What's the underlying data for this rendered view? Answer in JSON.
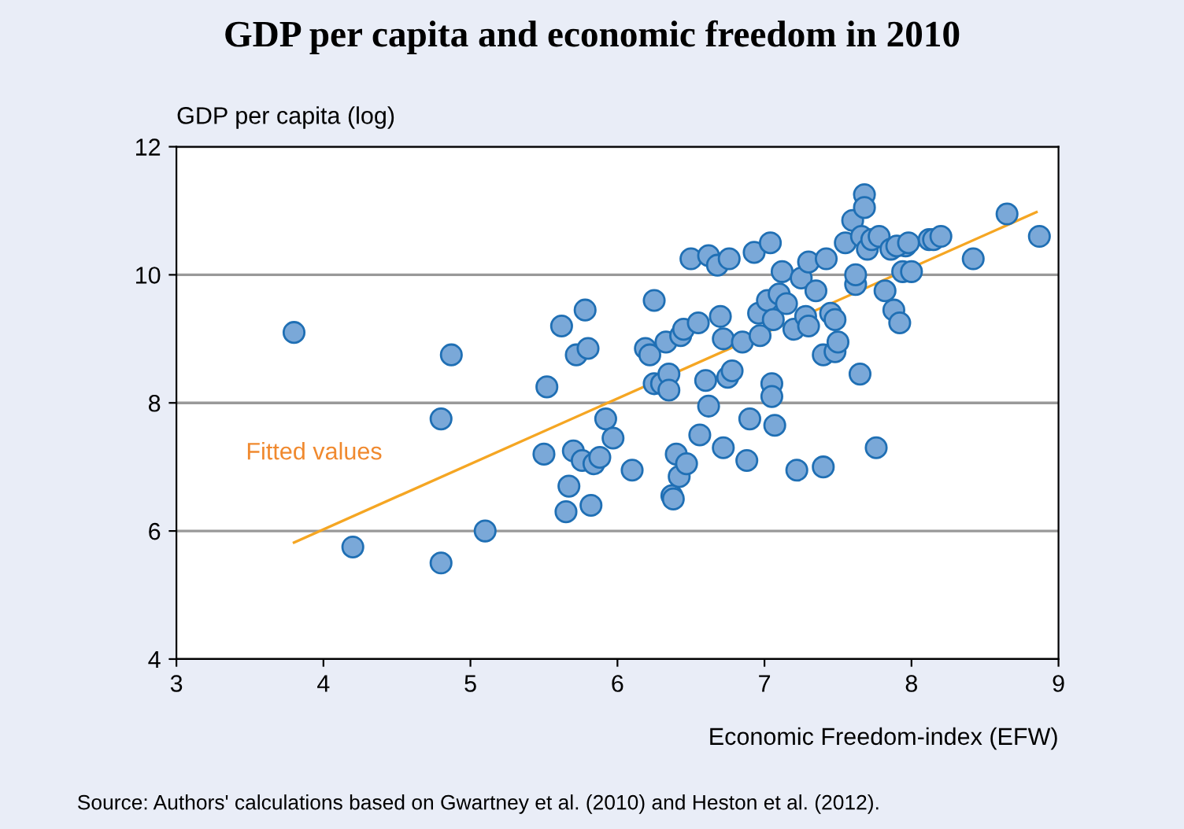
{
  "chart_data": {
    "type": "scatter",
    "title": "GDP per capita and economic freedom in 2010",
    "xlabel": "Economic Freedom-index (EFW)",
    "ylabel": "GDP per capita (log)",
    "annotations": [
      "Source: Authors' calculations based on Gwartney et al. (2010) and Heston et al. (2012)."
    ],
    "xlim": [
      3,
      9
    ],
    "ylim": [
      4,
      12
    ],
    "xticks": [
      3,
      4,
      5,
      6,
      7,
      8,
      9
    ],
    "yticks": [
      4,
      6,
      8,
      10,
      12
    ],
    "grid": "y",
    "marker": "circle",
    "series": [
      {
        "color": "#7aa8d8",
        "x": [
          3.8,
          4.2,
          4.8,
          4.8,
          4.87,
          5.1,
          5.52,
          5.5,
          5.62,
          5.65,
          5.67,
          5.7,
          5.72,
          5.78,
          5.76,
          5.8,
          5.82,
          5.84,
          5.88,
          5.92,
          5.97,
          6.1,
          6.19,
          6.22,
          6.25,
          6.25,
          6.3,
          6.33,
          6.35,
          6.35,
          6.37,
          6.38,
          6.4,
          6.42,
          6.43,
          6.45,
          6.47,
          6.5,
          6.55,
          6.56,
          6.6,
          6.62,
          6.62,
          6.68,
          6.7,
          6.72,
          6.72,
          6.75,
          6.78,
          6.76,
          6.85,
          6.9,
          6.88,
          6.93,
          6.96,
          6.97,
          7.02,
          7.04,
          7.05,
          7.05,
          7.06,
          7.07,
          7.1,
          7.12,
          7.15,
          7.2,
          7.22,
          7.25,
          7.28,
          7.3,
          7.3,
          7.35,
          7.4,
          7.4,
          7.42,
          7.45,
          7.48,
          7.48,
          7.5,
          7.55,
          7.6,
          7.62,
          7.65,
          7.62,
          7.66,
          7.68,
          7.68,
          7.7,
          7.73,
          7.76,
          7.78,
          7.82,
          7.86,
          7.88,
          7.92,
          7.94,
          7.96,
          8.0,
          8.12,
          8.15,
          8.2,
          8.42,
          8.65,
          8.87,
          7.9,
          7.98
        ],
        "values": [
          9.1,
          5.75,
          5.5,
          7.75,
          8.75,
          6.0,
          8.25,
          7.2,
          9.2,
          6.3,
          6.7,
          7.25,
          8.75,
          9.45,
          7.1,
          8.85,
          6.4,
          7.05,
          7.15,
          7.75,
          7.45,
          6.95,
          8.85,
          8.75,
          8.3,
          9.6,
          8.3,
          8.95,
          8.45,
          8.2,
          6.55,
          6.5,
          7.2,
          6.85,
          9.05,
          9.15,
          7.05,
          10.25,
          9.25,
          7.5,
          8.35,
          7.95,
          10.3,
          10.15,
          9.35,
          9.0,
          7.3,
          8.4,
          8.5,
          10.25,
          8.95,
          7.75,
          7.1,
          10.35,
          9.4,
          9.05,
          9.6,
          10.5,
          8.3,
          8.1,
          9.3,
          7.65,
          9.7,
          10.05,
          9.55,
          9.15,
          6.95,
          9.95,
          9.35,
          10.2,
          9.2,
          9.75,
          8.75,
          7.0,
          10.25,
          9.4,
          9.3,
          8.8,
          8.95,
          10.5,
          10.85,
          9.85,
          8.45,
          10.0,
          10.6,
          11.25,
          11.05,
          10.4,
          10.55,
          7.3,
          10.6,
          9.75,
          10.4,
          9.45,
          9.25,
          10.05,
          10.45,
          10.05,
          10.55,
          10.55,
          10.6,
          10.25,
          10.95,
          10.6,
          10.45,
          10.5
        ]
      },
      {
        "type": "line",
        "name": "Fitted values",
        "color": "#f5a623",
        "marker": "none",
        "x": [
          3.8,
          8.85
        ],
        "values": [
          5.82,
          10.98
        ]
      }
    ]
  }
}
